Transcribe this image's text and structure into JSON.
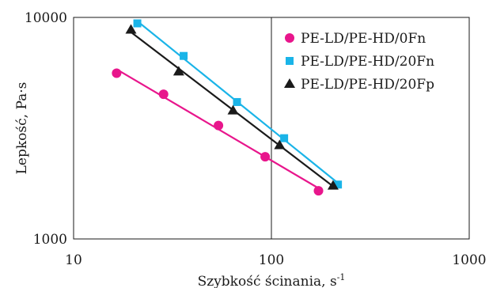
{
  "chart_data": {
    "type": "scatter",
    "title": "",
    "xlabel": "Szybkość ścinania, s",
    "xlabel_sup": "-1",
    "ylabel": "Lepkość, Pa·s",
    "x_scale": "log",
    "y_scale": "log",
    "xlim": [
      10,
      1000
    ],
    "ylim": [
      1000,
      10000
    ],
    "x_ticks": [
      10,
      100,
      1000
    ],
    "x_tick_labels": [
      "10",
      "100",
      "1000"
    ],
    "y_ticks": [
      1000,
      10000
    ],
    "y_tick_labels": [
      "1000",
      "10000"
    ],
    "grid": "vertical line at x=100 only",
    "legend_position": "top-right",
    "series": [
      {
        "name": "PE-LD/PE-HD/0Fn",
        "marker": "circle",
        "color": "#e8168c",
        "trendline": "power",
        "x": [
          16.5,
          28.5,
          54,
          93,
          173
        ],
        "y": [
          5600,
          4500,
          3250,
          2350,
          1650
        ]
      },
      {
        "name": "PE-LD/PE-HD/20Fn",
        "marker": "square",
        "color": "#1ab4e8",
        "trendline": "power",
        "x": [
          21,
          36,
          67,
          116,
          217
        ],
        "y": [
          9400,
          6700,
          4150,
          2850,
          1760
        ]
      },
      {
        "name": "PE-LD/PE-HD/20Fp",
        "marker": "triangle",
        "color": "#1a1a1a",
        "trendline": "power",
        "x": [
          19.5,
          34,
          64,
          110,
          205
        ],
        "y": [
          8800,
          5700,
          3800,
          2650,
          1740
        ]
      }
    ]
  }
}
